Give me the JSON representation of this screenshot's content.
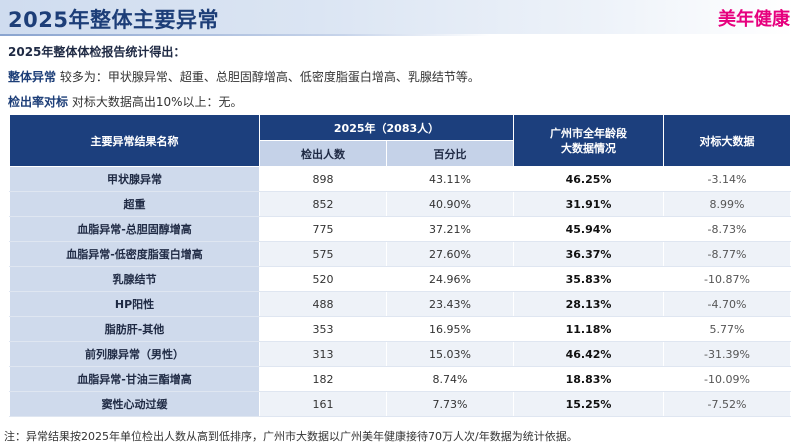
{
  "header": {
    "title": "2025年整体主要异常",
    "brand": "美年健康"
  },
  "intro": "2025年整体体检报告统计得出：",
  "lines": [
    {
      "label": "整体异常",
      "text": "较多为：甲状腺异常、超重、总胆固醇增高、低密度脂蛋白增高、乳腺结节等。"
    },
    {
      "label": "检出率对标",
      "text": "对标大数据高出10%以上：无。"
    }
  ],
  "table": {
    "col_name": "主要异常结果名称",
    "col_group": "2025年（2083人）",
    "col_count": "检出人数",
    "col_pct": "百分比",
    "col_city_line1": "广州市全年龄段",
    "col_city_line2": "大数据情况",
    "col_diff": "对标大数据",
    "rows": [
      {
        "name": "甲状腺异常",
        "count": "898",
        "pct": "43.11%",
        "city": "46.25%",
        "diff": "-3.14%"
      },
      {
        "name": "超重",
        "count": "852",
        "pct": "40.90%",
        "city": "31.91%",
        "diff": "8.99%"
      },
      {
        "name": "血脂异常-总胆固醇增高",
        "count": "775",
        "pct": "37.21%",
        "city": "45.94%",
        "diff": "-8.73%"
      },
      {
        "name": "血脂异常-低密度脂蛋白增高",
        "count": "575",
        "pct": "27.60%",
        "city": "36.37%",
        "diff": "-8.77%"
      },
      {
        "name": "乳腺结节",
        "count": "520",
        "pct": "24.96%",
        "city": "35.83%",
        "diff": "-10.87%"
      },
      {
        "name": "HP阳性",
        "count": "488",
        "pct": "23.43%",
        "city": "28.13%",
        "diff": "-4.70%"
      },
      {
        "name": "脂肪肝-其他",
        "count": "353",
        "pct": "16.95%",
        "city": "11.18%",
        "diff": "5.77%"
      },
      {
        "name": "前列腺异常（男性）",
        "count": "313",
        "pct": "15.03%",
        "city": "46.42%",
        "diff": "-31.39%"
      },
      {
        "name": "血脂异常-甘油三酯增高",
        "count": "182",
        "pct": "8.74%",
        "city": "18.83%",
        "diff": "-10.09%"
      },
      {
        "name": "窦性心动过缓",
        "count": "161",
        "pct": "7.73%",
        "city": "15.25%",
        "diff": "-7.52%"
      }
    ]
  },
  "note": "注：异常结果按2025年单位检出人数从高到低排序，广州市大数据以广州美年健康接待70万人次/年数据为统计依据。"
}
